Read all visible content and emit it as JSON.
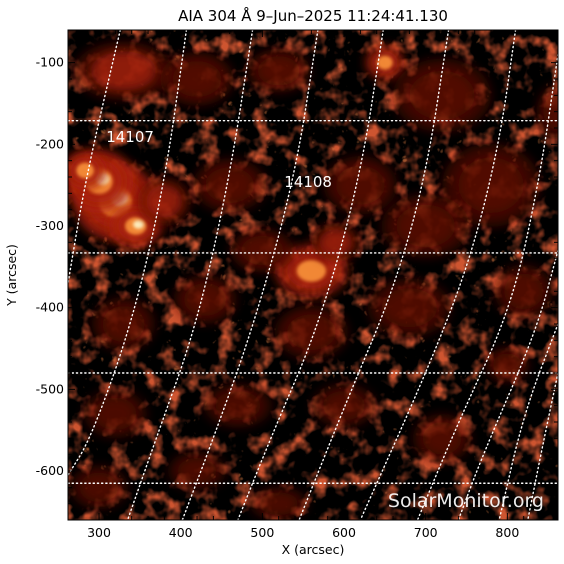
{
  "title": "AIA 304 Å  9–Jun–2025 11:24:41.130",
  "instrument": "AIA 304 Å",
  "observation_datetime": "9–Jun–2025 11:24:41.130",
  "watermark": "SolarMonitor.org",
  "axes": {
    "xlabel": "X (arcsec)",
    "ylabel": "Y (arcsec)",
    "xlim": [
      262,
      862
    ],
    "ylim": [
      -660,
      -60
    ],
    "xticks": [
      300,
      400,
      500,
      600,
      700,
      800
    ],
    "yticks": [
      -100,
      -200,
      -300,
      -400,
      -500,
      -600
    ]
  },
  "regions": [
    {
      "label": "14107",
      "x": 338,
      "y": -197
    },
    {
      "label": "14108",
      "x": 556,
      "y": -252
    }
  ],
  "grid": {
    "parallels_y": [
      -171,
      -333,
      -480,
      -615
    ],
    "meridians": [
      [
        [
          326,
          -60
        ],
        [
          284,
          -240
        ],
        [
          262,
          -370
        ]
      ],
      [
        [
          407,
          -60
        ],
        [
          380,
          -250
        ],
        [
          340,
          -420
        ],
        [
          290,
          -560
        ],
        [
          262,
          -605
        ]
      ],
      [
        [
          488,
          -60
        ],
        [
          460,
          -240
        ],
        [
          420,
          -420
        ],
        [
          370,
          -560
        ],
        [
          335,
          -660
        ]
      ],
      [
        [
          568,
          -60
        ],
        [
          540,
          -240
        ],
        [
          490,
          -420
        ],
        [
          440,
          -560
        ],
        [
          402,
          -660
        ]
      ],
      [
        [
          648,
          -60
        ],
        [
          620,
          -240
        ],
        [
          570,
          -420
        ],
        [
          510,
          -560
        ],
        [
          470,
          -660
        ]
      ],
      [
        [
          728,
          -60
        ],
        [
          700,
          -240
        ],
        [
          660,
          -380
        ],
        [
          605,
          -510
        ],
        [
          545,
          -660
        ]
      ],
      [
        [
          810,
          -60
        ],
        [
          790,
          -200
        ],
        [
          755,
          -340
        ],
        [
          705,
          -470
        ],
        [
          620,
          -660
        ]
      ],
      [
        [
          862,
          -90
        ],
        [
          840,
          -240
        ],
        [
          805,
          -400
        ],
        [
          740,
          -540
        ],
        [
          690,
          -660
        ]
      ],
      [
        [
          862,
          -330
        ],
        [
          835,
          -430
        ],
        [
          770,
          -580
        ],
        [
          740,
          -660
        ]
      ],
      [
        [
          862,
          -420
        ],
        [
          820,
          -530
        ],
        [
          790,
          -660
        ]
      ],
      [
        [
          862,
          -480
        ],
        [
          845,
          -560
        ],
        [
          825,
          -660
        ]
      ]
    ]
  },
  "colors": {
    "background": "#000000",
    "frame": "#000000",
    "grid": "#ffffff",
    "plasma_dark": "#5a0a02",
    "plasma_mid": "#a8200a",
    "plasma_bright": "#ff9a3c",
    "plasma_core": "#fff3c4"
  },
  "emission_patches": [
    {
      "x": 320,
      "y": -270,
      "rx": 34,
      "ry": 32,
      "level": 1.0
    },
    {
      "x": 300,
      "y": -245,
      "rx": 28,
      "ry": 26,
      "level": 0.95
    },
    {
      "x": 345,
      "y": -300,
      "rx": 22,
      "ry": 18,
      "level": 0.9
    },
    {
      "x": 283,
      "y": -232,
      "rx": 18,
      "ry": 16,
      "level": 0.85
    },
    {
      "x": 380,
      "y": -270,
      "rx": 22,
      "ry": 20,
      "level": 0.55
    },
    {
      "x": 560,
      "y": -355,
      "rx": 30,
      "ry": 22,
      "level": 0.78
    },
    {
      "x": 590,
      "y": -320,
      "rx": 20,
      "ry": 16,
      "level": 0.6
    },
    {
      "x": 500,
      "y": -330,
      "rx": 26,
      "ry": 18,
      "level": 0.5
    },
    {
      "x": 650,
      "y": -100,
      "rx": 16,
      "ry": 14,
      "level": 0.72
    },
    {
      "x": 330,
      "y": -110,
      "rx": 40,
      "ry": 24,
      "level": 0.55
    },
    {
      "x": 420,
      "y": -120,
      "rx": 30,
      "ry": 22,
      "level": 0.5
    },
    {
      "x": 520,
      "y": -110,
      "rx": 26,
      "ry": 18,
      "level": 0.48
    },
    {
      "x": 720,
      "y": -140,
      "rx": 40,
      "ry": 30,
      "level": 0.5
    },
    {
      "x": 780,
      "y": -250,
      "rx": 40,
      "ry": 34,
      "level": 0.5
    },
    {
      "x": 700,
      "y": -300,
      "rx": 36,
      "ry": 26,
      "level": 0.45
    },
    {
      "x": 620,
      "y": -250,
      "rx": 30,
      "ry": 24,
      "level": 0.45
    },
    {
      "x": 460,
      "y": -250,
      "rx": 30,
      "ry": 22,
      "level": 0.45
    },
    {
      "x": 430,
      "y": -390,
      "rx": 26,
      "ry": 20,
      "level": 0.42
    },
    {
      "x": 560,
      "y": -430,
      "rx": 30,
      "ry": 22,
      "level": 0.42
    },
    {
      "x": 680,
      "y": -400,
      "rx": 34,
      "ry": 24,
      "level": 0.4
    },
    {
      "x": 330,
      "y": -420,
      "rx": 26,
      "ry": 22,
      "level": 0.38
    },
    {
      "x": 320,
      "y": -530,
      "rx": 26,
      "ry": 20,
      "level": 0.32
    },
    {
      "x": 470,
      "y": -520,
      "rx": 28,
      "ry": 18,
      "level": 0.3
    },
    {
      "x": 600,
      "y": -520,
      "rx": 26,
      "ry": 18,
      "level": 0.3
    },
    {
      "x": 720,
      "y": -560,
      "rx": 24,
      "ry": 20,
      "level": 0.4
    },
    {
      "x": 820,
      "y": -380,
      "rx": 24,
      "ry": 22,
      "level": 0.42
    },
    {
      "x": 800,
      "y": -470,
      "rx": 18,
      "ry": 14,
      "level": 0.5
    },
    {
      "x": 300,
      "y": -620,
      "rx": 24,
      "ry": 18,
      "level": 0.28
    },
    {
      "x": 420,
      "y": -600,
      "rx": 24,
      "ry": 16,
      "level": 0.26
    },
    {
      "x": 520,
      "y": -640,
      "rx": 24,
      "ry": 14,
      "level": 0.24
    },
    {
      "x": 860,
      "y": -160,
      "rx": 16,
      "ry": 22,
      "level": 0.4
    }
  ]
}
